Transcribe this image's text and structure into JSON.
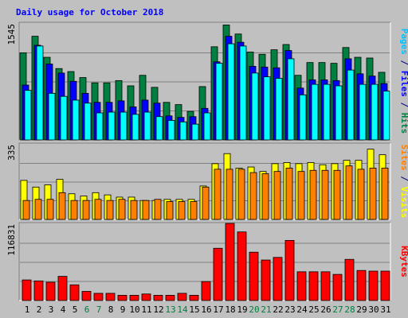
{
  "chart_data": [
    {
      "type": "bar",
      "title": "Daily usage for October 2018",
      "categories": [
        "1",
        "2",
        "3",
        "4",
        "5",
        "6",
        "7",
        "8",
        "9",
        "10",
        "11",
        "12",
        "13",
        "14",
        "15",
        "16",
        "17",
        "18",
        "19",
        "20",
        "21",
        "22",
        "23",
        "24",
        "25",
        "26",
        "27",
        "28",
        "29",
        "30",
        "31"
      ],
      "weekend_days": [
        "6",
        "7",
        "13",
        "14",
        "20",
        "21",
        "27",
        "28"
      ],
      "ylim": [
        0,
        1545
      ],
      "ytick_label": "1545",
      "series": [
        {
          "name": "Hits",
          "color": "#008040",
          "values": [
            1160,
            1380,
            1100,
            950,
            910,
            830,
            760,
            760,
            790,
            720,
            860,
            700,
            500,
            470,
            380,
            710,
            1240,
            1530,
            1410,
            1170,
            1140,
            1200,
            1270,
            860,
            1030,
            1030,
            1020,
            1230,
            1100,
            1090,
            900
          ]
        },
        {
          "name": "Files",
          "color": "#0000ff",
          "values": [
            730,
            1260,
            1010,
            890,
            780,
            620,
            500,
            500,
            520,
            440,
            530,
            490,
            320,
            300,
            310,
            420,
            1040,
            1380,
            1300,
            980,
            970,
            960,
            1190,
            690,
            800,
            800,
            790,
            1080,
            880,
            850,
            750
          ]
        },
        {
          "name": "Pages",
          "color": "#00ffff",
          "values": [
            660,
            1250,
            620,
            580,
            530,
            490,
            360,
            370,
            370,
            340,
            370,
            310,
            260,
            240,
            210,
            360,
            1020,
            1280,
            1250,
            890,
            840,
            820,
            1080,
            600,
            740,
            740,
            720,
            930,
            740,
            740,
            650
          ]
        }
      ],
      "ylabel_parts": [
        {
          "text": "Pages",
          "color": "#00c0ff"
        },
        {
          "text": " / ",
          "color": "#000080"
        },
        {
          "text": "Files",
          "color": "#0000ff"
        },
        {
          "text": " / ",
          "color": "#000080"
        },
        {
          "text": "Hits",
          "color": "#008040"
        }
      ]
    },
    {
      "type": "bar",
      "categories": [
        "1",
        "2",
        "3",
        "4",
        "5",
        "6",
        "7",
        "8",
        "9",
        "10",
        "11",
        "12",
        "13",
        "14",
        "15",
        "16",
        "17",
        "18",
        "19",
        "20",
        "21",
        "22",
        "23",
        "24",
        "25",
        "26",
        "27",
        "28",
        "29",
        "30",
        "31"
      ],
      "ylim": [
        0,
        335
      ],
      "ytick_label": "335",
      "series": [
        {
          "name": "Visits",
          "color": "#ffff00",
          "values": [
            175,
            145,
            155,
            180,
            115,
            105,
            120,
            110,
            100,
            100,
            85,
            85,
            90,
            90,
            90,
            150,
            250,
            295,
            230,
            235,
            215,
            250,
            255,
            250,
            255,
            245,
            250,
            265,
            265,
            315,
            290
          ]
        },
        {
          "name": "Sites",
          "color": "#ff8000",
          "values": [
            85,
            90,
            90,
            120,
            85,
            85,
            90,
            85,
            90,
            85,
            85,
            90,
            80,
            80,
            80,
            145,
            225,
            225,
            225,
            210,
            205,
            215,
            230,
            215,
            220,
            220,
            220,
            240,
            225,
            230,
            230
          ]
        }
      ],
      "ylabel_parts": [
        {
          "text": "Sites",
          "color": "#ff8000"
        },
        {
          "text": " / ",
          "color": "#000080"
        },
        {
          "text": "Visits",
          "color": "#ffff00"
        }
      ]
    },
    {
      "type": "bar",
      "categories": [
        "1",
        "2",
        "3",
        "4",
        "5",
        "6",
        "7",
        "8",
        "9",
        "10",
        "11",
        "12",
        "13",
        "14",
        "15",
        "16",
        "17",
        "18",
        "19",
        "20",
        "21",
        "22",
        "23",
        "24",
        "25",
        "26",
        "27",
        "28",
        "29",
        "30",
        "31"
      ],
      "ylim": [
        0,
        116831
      ],
      "ytick_label": "116831",
      "series": [
        {
          "name": "KBytes",
          "color": "#ff0000",
          "values": [
            31500,
            30000,
            28000,
            37000,
            24000,
            14000,
            11000,
            11000,
            8000,
            8000,
            10000,
            8000,
            8000,
            11000,
            8000,
            29000,
            80000,
            118000,
            105000,
            74000,
            62000,
            66000,
            92000,
            44000,
            44000,
            44000,
            40000,
            63000,
            46000,
            45000,
            45000
          ]
        }
      ],
      "ylabel_parts": [
        {
          "text": "KBytes",
          "color": "#ff0000"
        }
      ]
    }
  ]
}
